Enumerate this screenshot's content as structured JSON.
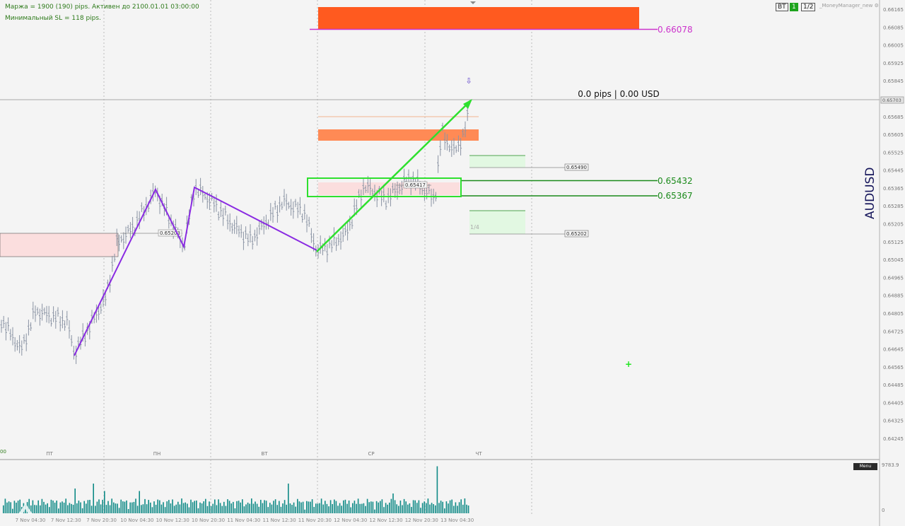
{
  "info": {
    "line1": "Маржа = 1900 (190) pips. Активен до 2100.01.01 03:00:00",
    "line2": "Минимальный SL = 118 pips."
  },
  "toolbar": {
    "bt_label": "BT",
    "one_label": "1",
    "half_label": "1/2",
    "manager_label": "_MoneyManager_new"
  },
  "symbol": "AUDUSD",
  "pnl": "0.0 pips | 0.00 USD",
  "levels": {
    "top": "0.66078",
    "upper": "0.65432",
    "lower": "0.65367"
  },
  "small_labels": {
    "a": "0.65203",
    "b": "0.65417",
    "c": "0.65490",
    "d": "0.65202",
    "quarter": "1/4"
  },
  "current_price": "0.65703",
  "price_axis": [
    "0.66165",
    "0.66085",
    "0.66005",
    "0.65925",
    "0.65845",
    "0.65765",
    "0.65685",
    "0.65605",
    "0.65525",
    "0.65445",
    "0.65365",
    "0.65285",
    "0.65205",
    "0.65125",
    "0.65045",
    "0.64965",
    "0.64885",
    "0.64805",
    "0.64725",
    "0.64645",
    "0.64565",
    "0.64485",
    "0.64405",
    "0.64325",
    "0.64245"
  ],
  "days": [
    "ПТ",
    "ПН",
    "ВТ",
    "СР",
    "ЧТ"
  ],
  "time_axis": [
    "7 Nov 04:30",
    "7 Nov 12:30",
    "7 Nov 20:30",
    "10 Nov 04:30",
    "10 Nov 12:30",
    "10 Nov 20:30",
    "11 Nov 04:30",
    "11 Nov 12:30",
    "11 Nov 20:30",
    "12 Nov 04:30",
    "12 Nov 12:30",
    "12 Nov 20:30",
    "13 Nov 04:30"
  ],
  "left_time_fragment": "00",
  "volume_max": "9783.9",
  "volume_zero": "0",
  "menu_label": "Menu",
  "colors": {
    "background": "#f4f4f4",
    "bars": "#8a93a3",
    "trend": "#8a2be2",
    "trend_up": "#2ee02e",
    "top_level": "#cc33cc",
    "zone_orange": "#ff5a1f",
    "volume": "#0f8a86",
    "levels": "#1a8a1a"
  }
}
